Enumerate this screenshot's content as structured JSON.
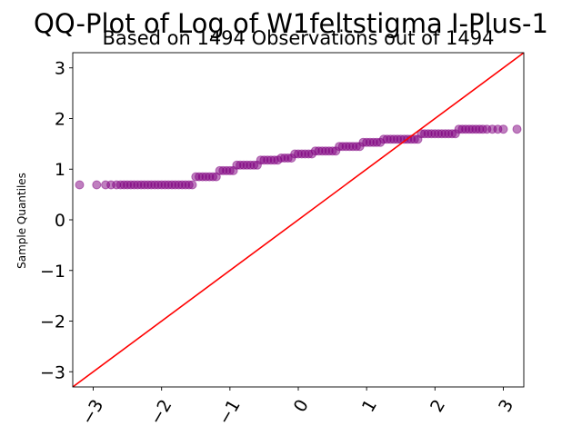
{
  "chart_data": {
    "type": "scatter",
    "title": "QQ-Plot of Log of W1feltstigma I-Plus-1",
    "subtitle": "Based on 1494 Observations out of 1494",
    "xlabel": "",
    "ylabel": "Sample Quantiles",
    "xlim": [
      -3.3,
      3.3
    ],
    "ylim": [
      -3.3,
      3.3
    ],
    "xticks": [
      -3,
      -2,
      -1,
      0,
      1,
      2,
      3
    ],
    "xtick_labels": [
      "−3",
      "−2",
      "−1",
      "0",
      "1",
      "2",
      "3"
    ],
    "yticks": [
      -3,
      -2,
      -1,
      0,
      1,
      2,
      3
    ],
    "ytick_labels": [
      "−3",
      "−2",
      "−1",
      "0",
      "1",
      "2",
      "3"
    ],
    "grid": false,
    "reference_line": {
      "slope": 1,
      "intercept": 0,
      "color": "#ff0000"
    },
    "series": [
      {
        "marker_color": "#800080",
        "points": [
          [
            -3.2,
            0.69
          ],
          [
            -2.95,
            0.69
          ],
          [
            -2.82,
            0.69
          ],
          [
            -2.74,
            0.69
          ],
          [
            -2.66,
            0.69
          ],
          [
            -2.6,
            0.69
          ],
          [
            -2.55,
            0.69
          ],
          [
            -2.5,
            0.69
          ],
          [
            -2.45,
            0.69
          ],
          [
            -2.4,
            0.69
          ],
          [
            -2.35,
            0.69
          ],
          [
            -2.3,
            0.69
          ],
          [
            -2.25,
            0.69
          ],
          [
            -2.2,
            0.69
          ],
          [
            -2.15,
            0.69
          ],
          [
            -2.1,
            0.69
          ],
          [
            -2.05,
            0.69
          ],
          [
            -2.0,
            0.69
          ],
          [
            -1.95,
            0.69
          ],
          [
            -1.9,
            0.69
          ],
          [
            -1.85,
            0.69
          ],
          [
            -1.8,
            0.69
          ],
          [
            -1.75,
            0.69
          ],
          [
            -1.7,
            0.69
          ],
          [
            -1.65,
            0.69
          ],
          [
            -1.6,
            0.69
          ],
          [
            -1.55,
            0.69
          ],
          [
            -1.5,
            0.85
          ],
          [
            -1.45,
            0.85
          ],
          [
            -1.4,
            0.85
          ],
          [
            -1.35,
            0.85
          ],
          [
            -1.3,
            0.85
          ],
          [
            -1.25,
            0.85
          ],
          [
            -1.2,
            0.85
          ],
          [
            -1.15,
            0.97
          ],
          [
            -1.1,
            0.97
          ],
          [
            -1.05,
            0.97
          ],
          [
            -1.0,
            0.97
          ],
          [
            -0.95,
            0.97
          ],
          [
            -0.9,
            1.08
          ],
          [
            -0.85,
            1.08
          ],
          [
            -0.8,
            1.08
          ],
          [
            -0.75,
            1.08
          ],
          [
            -0.7,
            1.08
          ],
          [
            -0.65,
            1.08
          ],
          [
            -0.6,
            1.08
          ],
          [
            -0.55,
            1.18
          ],
          [
            -0.5,
            1.18
          ],
          [
            -0.45,
            1.18
          ],
          [
            -0.4,
            1.18
          ],
          [
            -0.35,
            1.18
          ],
          [
            -0.3,
            1.18
          ],
          [
            -0.25,
            1.22
          ],
          [
            -0.2,
            1.22
          ],
          [
            -0.15,
            1.22
          ],
          [
            -0.1,
            1.22
          ],
          [
            -0.05,
            1.3
          ],
          [
            0.0,
            1.3
          ],
          [
            0.05,
            1.3
          ],
          [
            0.1,
            1.3
          ],
          [
            0.15,
            1.3
          ],
          [
            0.2,
            1.3
          ],
          [
            0.25,
            1.36
          ],
          [
            0.3,
            1.36
          ],
          [
            0.35,
            1.36
          ],
          [
            0.4,
            1.36
          ],
          [
            0.45,
            1.36
          ],
          [
            0.5,
            1.36
          ],
          [
            0.55,
            1.36
          ],
          [
            0.6,
            1.45
          ],
          [
            0.65,
            1.45
          ],
          [
            0.7,
            1.45
          ],
          [
            0.75,
            1.45
          ],
          [
            0.8,
            1.45
          ],
          [
            0.85,
            1.45
          ],
          [
            0.9,
            1.45
          ],
          [
            0.95,
            1.53
          ],
          [
            1.0,
            1.53
          ],
          [
            1.05,
            1.53
          ],
          [
            1.1,
            1.53
          ],
          [
            1.15,
            1.53
          ],
          [
            1.2,
            1.53
          ],
          [
            1.25,
            1.59
          ],
          [
            1.3,
            1.59
          ],
          [
            1.35,
            1.59
          ],
          [
            1.4,
            1.59
          ],
          [
            1.45,
            1.59
          ],
          [
            1.5,
            1.59
          ],
          [
            1.55,
            1.59
          ],
          [
            1.6,
            1.59
          ],
          [
            1.65,
            1.59
          ],
          [
            1.7,
            1.59
          ],
          [
            1.75,
            1.59
          ],
          [
            1.8,
            1.7
          ],
          [
            1.85,
            1.7
          ],
          [
            1.9,
            1.7
          ],
          [
            1.95,
            1.7
          ],
          [
            2.0,
            1.7
          ],
          [
            2.05,
            1.7
          ],
          [
            2.1,
            1.7
          ],
          [
            2.15,
            1.7
          ],
          [
            2.2,
            1.7
          ],
          [
            2.25,
            1.7
          ],
          [
            2.3,
            1.7
          ],
          [
            2.35,
            1.79
          ],
          [
            2.4,
            1.79
          ],
          [
            2.45,
            1.79
          ],
          [
            2.5,
            1.79
          ],
          [
            2.55,
            1.79
          ],
          [
            2.6,
            1.79
          ],
          [
            2.65,
            1.79
          ],
          [
            2.7,
            1.79
          ],
          [
            2.76,
            1.79
          ],
          [
            2.84,
            1.79
          ],
          [
            2.92,
            1.79
          ],
          [
            3.0,
            1.79
          ],
          [
            3.2,
            1.79
          ]
        ]
      }
    ]
  }
}
